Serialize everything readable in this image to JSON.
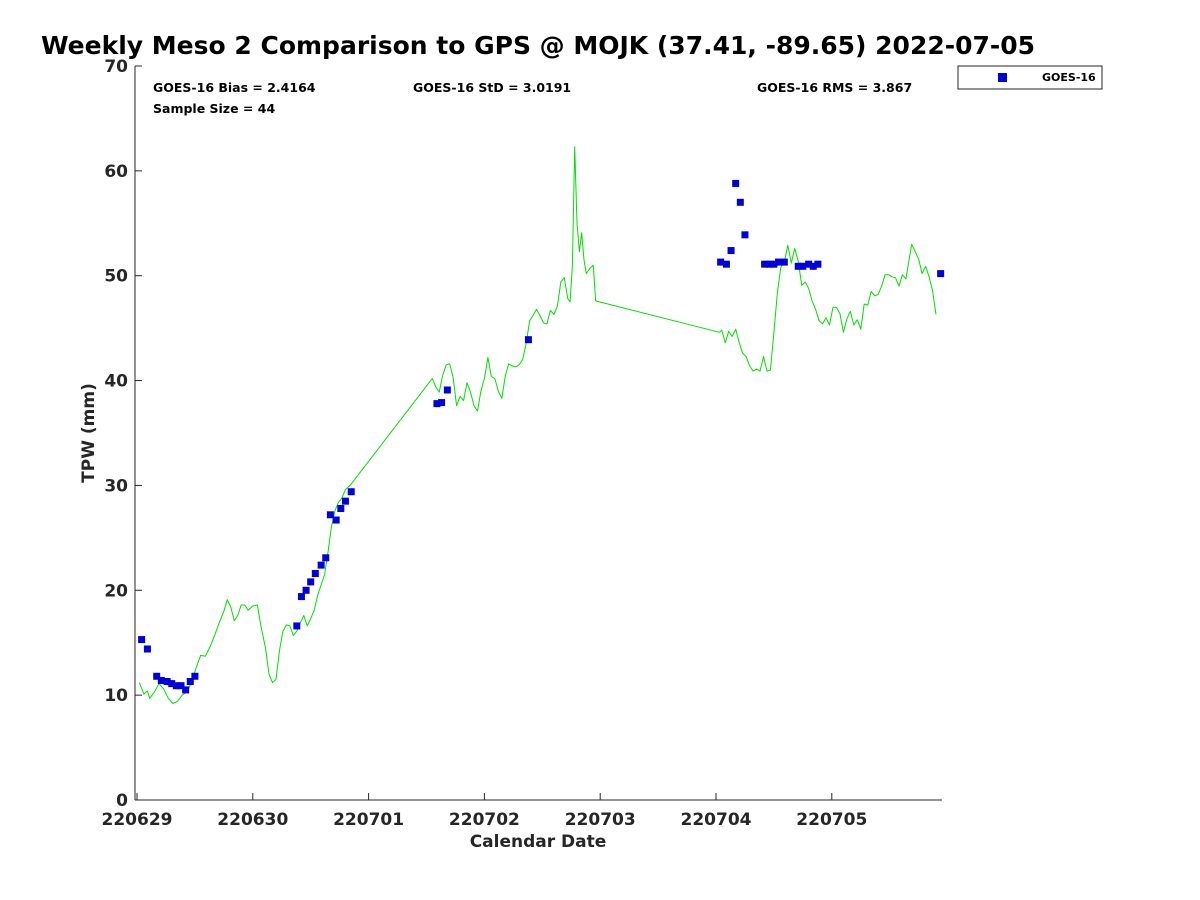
{
  "chart_data": {
    "type": "scatter",
    "title": "Weekly Meso 2 Comparison to GPS @ MOJK (37.41, -89.65) 2022-07-05",
    "xlabel": "Calendar Date",
    "ylabel": "TPW (mm)",
    "x_unit": "days since 220629 00Z",
    "xlim": [
      0,
      6.95
    ],
    "ylim": [
      0,
      70
    ],
    "x_ticks": [
      {
        "value": 0,
        "label": "220629"
      },
      {
        "value": 1,
        "label": "220630"
      },
      {
        "value": 2,
        "label": "220701"
      },
      {
        "value": 3,
        "label": "220702"
      },
      {
        "value": 4,
        "label": "220703"
      },
      {
        "value": 5,
        "label": "220704"
      },
      {
        "value": 6,
        "label": "220705"
      }
    ],
    "y_ticks": [
      0,
      10,
      20,
      30,
      40,
      50,
      60,
      70
    ],
    "stats": {
      "bias": "GOES-16 Bias = 2.4164",
      "std": "GOES-16 StD = 3.0191",
      "rms": "GOES-16 RMS = 3.867",
      "sample": "Sample Size = 44"
    },
    "legend": {
      "position": "top-right",
      "entries": [
        "GOES-16"
      ]
    },
    "series": [
      {
        "name": "GOES-16",
        "kind": "markers",
        "color": "#0000dd",
        "points": [
          [
            0.04,
            15.3
          ],
          [
            0.09,
            14.4
          ],
          [
            0.17,
            11.8
          ],
          [
            0.21,
            11.4
          ],
          [
            0.26,
            11.3
          ],
          [
            0.3,
            11.1
          ],
          [
            0.34,
            10.9
          ],
          [
            0.38,
            10.9
          ],
          [
            0.42,
            10.5
          ],
          [
            0.46,
            11.3
          ],
          [
            0.5,
            11.8
          ],
          [
            1.38,
            16.6
          ],
          [
            1.42,
            19.4
          ],
          [
            1.46,
            20.0
          ],
          [
            1.5,
            20.8
          ],
          [
            1.54,
            21.6
          ],
          [
            1.59,
            22.4
          ],
          [
            1.63,
            23.1
          ],
          [
            1.67,
            27.2
          ],
          [
            1.72,
            26.7
          ],
          [
            1.76,
            27.8
          ],
          [
            1.8,
            28.5
          ],
          [
            1.85,
            29.4
          ],
          [
            2.59,
            37.8
          ],
          [
            2.63,
            37.9
          ],
          [
            2.68,
            39.1
          ],
          [
            3.38,
            43.9
          ],
          [
            5.04,
            51.3
          ],
          [
            5.09,
            51.1
          ],
          [
            5.13,
            52.4
          ],
          [
            5.17,
            58.8
          ],
          [
            5.21,
            57.0
          ],
          [
            5.25,
            53.9
          ],
          [
            5.42,
            51.1
          ],
          [
            5.46,
            51.1
          ],
          [
            5.5,
            51.1
          ],
          [
            5.54,
            51.3
          ],
          [
            5.59,
            51.3
          ],
          [
            5.71,
            50.9
          ],
          [
            5.75,
            50.9
          ],
          [
            5.8,
            51.1
          ],
          [
            5.84,
            50.9
          ],
          [
            5.88,
            51.1
          ],
          [
            6.94,
            50.2
          ]
        ]
      },
      {
        "name": "GPS",
        "kind": "line",
        "color": "#00e000",
        "points": [
          [
            0.02,
            11.2
          ],
          [
            0.06,
            10.1
          ],
          [
            0.09,
            10.4
          ],
          [
            0.11,
            9.7
          ],
          [
            0.15,
            10.3
          ],
          [
            0.19,
            11.1
          ],
          [
            0.23,
            10.6
          ],
          [
            0.27,
            9.7
          ],
          [
            0.31,
            9.2
          ],
          [
            0.35,
            9.4
          ],
          [
            0.39,
            10.0
          ],
          [
            0.43,
            10.3
          ],
          [
            0.47,
            11.2
          ],
          [
            0.51,
            12.6
          ],
          [
            0.55,
            13.8
          ],
          [
            0.59,
            13.7
          ],
          [
            0.63,
            14.6
          ],
          [
            0.67,
            15.7
          ],
          [
            0.71,
            16.9
          ],
          [
            0.75,
            18.0
          ],
          [
            0.78,
            19.1
          ],
          [
            0.81,
            18.4
          ],
          [
            0.84,
            17.1
          ],
          [
            0.87,
            17.6
          ],
          [
            0.9,
            18.6
          ],
          [
            0.93,
            18.6
          ],
          [
            0.96,
            18.1
          ],
          [
            1.0,
            18.5
          ],
          [
            1.04,
            18.6
          ],
          [
            1.07,
            16.6
          ],
          [
            1.11,
            14.5
          ],
          [
            1.14,
            12.0
          ],
          [
            1.17,
            11.2
          ],
          [
            1.2,
            11.5
          ],
          [
            1.23,
            14.2
          ],
          [
            1.26,
            16.1
          ],
          [
            1.29,
            16.7
          ],
          [
            1.32,
            16.6
          ],
          [
            1.35,
            15.7
          ],
          [
            1.38,
            16.1
          ],
          [
            1.41,
            16.9
          ],
          [
            1.44,
            17.6
          ],
          [
            1.47,
            16.6
          ],
          [
            1.5,
            17.3
          ],
          [
            1.53,
            18.1
          ],
          [
            1.56,
            19.5
          ],
          [
            1.59,
            20.5
          ],
          [
            1.62,
            21.5
          ],
          [
            1.65,
            23.7
          ],
          [
            1.68,
            26.1
          ],
          [
            1.71,
            27.6
          ],
          [
            1.74,
            28.4
          ],
          [
            1.77,
            28.8
          ],
          [
            1.8,
            29.6
          ],
          [
            1.84,
            30.0
          ],
          [
            2.55,
            40.2
          ],
          [
            2.58,
            39.4
          ],
          [
            2.61,
            38.9
          ],
          [
            2.64,
            40.5
          ],
          [
            2.67,
            41.5
          ],
          [
            2.7,
            41.6
          ],
          [
            2.73,
            40.3
          ],
          [
            2.76,
            37.6
          ],
          [
            2.79,
            38.5
          ],
          [
            2.82,
            38.1
          ],
          [
            2.85,
            39.8
          ],
          [
            2.88,
            38.9
          ],
          [
            2.91,
            37.6
          ],
          [
            2.94,
            37.1
          ],
          [
            2.97,
            39.0
          ],
          [
            3.0,
            40.2
          ],
          [
            3.03,
            42.2
          ],
          [
            3.06,
            40.4
          ],
          [
            3.09,
            40.2
          ],
          [
            3.12,
            39.0
          ],
          [
            3.15,
            38.3
          ],
          [
            3.18,
            40.4
          ],
          [
            3.21,
            41.6
          ],
          [
            3.24,
            41.4
          ],
          [
            3.27,
            41.3
          ],
          [
            3.3,
            41.5
          ],
          [
            3.33,
            42.0
          ],
          [
            3.36,
            43.5
          ],
          [
            3.39,
            45.7
          ],
          [
            3.42,
            46.2
          ],
          [
            3.45,
            46.8
          ],
          [
            3.48,
            46.2
          ],
          [
            3.51,
            45.5
          ],
          [
            3.54,
            45.4
          ],
          [
            3.57,
            46.7
          ],
          [
            3.6,
            46.3
          ],
          [
            3.63,
            47.1
          ],
          [
            3.66,
            49.4
          ],
          [
            3.69,
            49.8
          ],
          [
            3.72,
            47.8
          ],
          [
            3.74,
            47.5
          ],
          [
            3.76,
            51.0
          ],
          [
            3.78,
            62.3
          ],
          [
            3.8,
            55.0
          ],
          [
            3.82,
            52.3
          ],
          [
            3.84,
            54.1
          ],
          [
            3.86,
            51.5
          ],
          [
            3.88,
            50.2
          ],
          [
            3.91,
            50.7
          ],
          [
            3.94,
            51.0
          ],
          [
            3.96,
            47.6
          ],
          [
            5.03,
            44.6
          ],
          [
            5.05,
            44.8
          ],
          [
            5.08,
            43.6
          ],
          [
            5.11,
            44.7
          ],
          [
            5.14,
            44.2
          ],
          [
            5.17,
            44.9
          ],
          [
            5.2,
            43.6
          ],
          [
            5.23,
            42.6
          ],
          [
            5.26,
            42.3
          ],
          [
            5.29,
            41.4
          ],
          [
            5.32,
            40.9
          ],
          [
            5.35,
            41.1
          ],
          [
            5.38,
            40.9
          ],
          [
            5.41,
            42.3
          ],
          [
            5.44,
            40.9
          ],
          [
            5.47,
            41.0
          ],
          [
            5.5,
            44.6
          ],
          [
            5.53,
            48.4
          ],
          [
            5.56,
            50.8
          ],
          [
            5.59,
            51.3
          ],
          [
            5.62,
            52.9
          ],
          [
            5.65,
            51.2
          ],
          [
            5.68,
            52.6
          ],
          [
            5.71,
            51.4
          ],
          [
            5.74,
            49.1
          ],
          [
            5.77,
            49.4
          ],
          [
            5.8,
            48.8
          ],
          [
            5.83,
            47.6
          ],
          [
            5.86,
            46.8
          ],
          [
            5.89,
            45.7
          ],
          [
            5.92,
            45.4
          ],
          [
            5.95,
            46.0
          ],
          [
            5.98,
            45.3
          ],
          [
            6.01,
            47.0
          ],
          [
            6.04,
            47.0
          ],
          [
            6.07,
            46.4
          ],
          [
            6.1,
            44.6
          ],
          [
            6.13,
            45.9
          ],
          [
            6.16,
            46.6
          ],
          [
            6.19,
            45.3
          ],
          [
            6.22,
            45.8
          ],
          [
            6.25,
            44.9
          ],
          [
            6.28,
            47.3
          ],
          [
            6.31,
            47.2
          ],
          [
            6.34,
            48.5
          ],
          [
            6.37,
            48.1
          ],
          [
            6.4,
            48.2
          ],
          [
            6.43,
            49.0
          ],
          [
            6.46,
            50.1
          ],
          [
            6.49,
            50.1
          ],
          [
            6.52,
            49.9
          ],
          [
            6.55,
            49.8
          ],
          [
            6.58,
            49.0
          ],
          [
            6.61,
            50.1
          ],
          [
            6.64,
            49.7
          ],
          [
            6.67,
            51.7
          ],
          [
            6.69,
            53.0
          ],
          [
            6.72,
            52.3
          ],
          [
            6.75,
            51.6
          ],
          [
            6.78,
            50.2
          ],
          [
            6.81,
            50.9
          ],
          [
            6.84,
            49.9
          ],
          [
            6.87,
            48.6
          ],
          [
            6.9,
            46.3
          ]
        ]
      }
    ]
  }
}
